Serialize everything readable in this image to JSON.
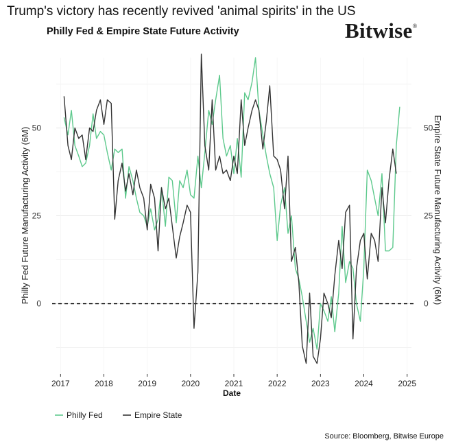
{
  "headline": "Trump's victory has recently revived 'animal spirits' in the US",
  "brand": {
    "name": "Bitwise",
    "mark": "®"
  },
  "source": "Source: Bloomberg, Bitwise Europe",
  "chart_data": {
    "type": "line",
    "title": "Philly Fed & Empire State Future Activity",
    "xlabel": "Date",
    "ylabel": "Philly Fed Future Manufacturing Activity (6M)",
    "ylabel_right": "Empire State Future Manufacturing Activity (6M)",
    "xlim": [
      2016.9,
      2025.1
    ],
    "ylim": [
      -20,
      70
    ],
    "x_ticks": [
      2017,
      2018,
      2019,
      2020,
      2021,
      2022,
      2023,
      2024,
      2025
    ],
    "y_ticks": [
      0,
      25,
      50
    ],
    "grid": "horizontal",
    "reference_line": {
      "y": 0,
      "style": "dashed"
    },
    "legend_position": "bottom-left",
    "colors": {
      "Philly Fed": "#5dc98c",
      "Empire State": "#333333"
    },
    "series": [
      {
        "name": "Philly Fed",
        "x": [
          2017.08,
          2017.17,
          2017.25,
          2017.33,
          2017.42,
          2017.5,
          2017.58,
          2017.67,
          2017.75,
          2017.83,
          2017.92,
          2018.0,
          2018.08,
          2018.17,
          2018.25,
          2018.33,
          2018.42,
          2018.5,
          2018.58,
          2018.67,
          2018.75,
          2018.83,
          2018.92,
          2019.0,
          2019.08,
          2019.17,
          2019.25,
          2019.33,
          2019.42,
          2019.5,
          2019.58,
          2019.67,
          2019.75,
          2019.83,
          2019.92,
          2020.0,
          2020.08,
          2020.17,
          2020.25,
          2020.33,
          2020.42,
          2020.5,
          2020.58,
          2020.67,
          2020.75,
          2020.83,
          2020.92,
          2021.0,
          2021.08,
          2021.17,
          2021.25,
          2021.33,
          2021.42,
          2021.5,
          2021.58,
          2021.67,
          2021.75,
          2021.83,
          2021.92,
          2022.0,
          2022.08,
          2022.17,
          2022.25,
          2022.33,
          2022.42,
          2022.5,
          2022.58,
          2022.67,
          2022.75,
          2022.83,
          2022.92,
          2023.0,
          2023.08,
          2023.17,
          2023.25,
          2023.33,
          2023.42,
          2023.5,
          2023.58,
          2023.67,
          2023.75,
          2023.83,
          2023.92,
          2024.0,
          2024.08,
          2024.17,
          2024.25,
          2024.33,
          2024.42,
          2024.5,
          2024.58,
          2024.67,
          2024.75,
          2024.83,
          2024.92
        ],
        "y": [
          53,
          48,
          55,
          45,
          42,
          39,
          40,
          45,
          54,
          47,
          49,
          48,
          43,
          38,
          44,
          43,
          44,
          30,
          39,
          35,
          30,
          26,
          25,
          22,
          27,
          21,
          24,
          33,
          22,
          36,
          35,
          23,
          35,
          33,
          38,
          31,
          30,
          42,
          33,
          43,
          55,
          51,
          58,
          65,
          47,
          42,
          45,
          37,
          47,
          36,
          60,
          58,
          63,
          70,
          55,
          48,
          42,
          37,
          33,
          18,
          28,
          33,
          20,
          25,
          10,
          7,
          2,
          -5,
          -11,
          -7,
          -13,
          0,
          -2,
          -5,
          2,
          -8,
          3,
          22,
          6,
          12,
          10,
          0,
          -5,
          10,
          38,
          35,
          30,
          25,
          37,
          15,
          15,
          16,
          45,
          56,
          null
        ]
      },
      {
        "name": "Empire State",
        "x": [
          2017.08,
          2017.17,
          2017.25,
          2017.33,
          2017.42,
          2017.5,
          2017.58,
          2017.67,
          2017.75,
          2017.83,
          2017.92,
          2018.0,
          2018.08,
          2018.17,
          2018.25,
          2018.33,
          2018.42,
          2018.5,
          2018.58,
          2018.67,
          2018.75,
          2018.83,
          2018.92,
          2019.0,
          2019.08,
          2019.17,
          2019.25,
          2019.33,
          2019.42,
          2019.5,
          2019.58,
          2019.67,
          2019.75,
          2019.83,
          2019.92,
          2020.0,
          2020.08,
          2020.17,
          2020.25,
          2020.33,
          2020.42,
          2020.5,
          2020.58,
          2020.67,
          2020.75,
          2020.83,
          2020.92,
          2021.0,
          2021.08,
          2021.17,
          2021.25,
          2021.33,
          2021.42,
          2021.5,
          2021.58,
          2021.67,
          2021.75,
          2021.83,
          2021.92,
          2022.0,
          2022.08,
          2022.17,
          2022.25,
          2022.33,
          2022.42,
          2022.5,
          2022.58,
          2022.67,
          2022.75,
          2022.83,
          2022.92,
          2023.0,
          2023.08,
          2023.17,
          2023.25,
          2023.33,
          2023.42,
          2023.5,
          2023.58,
          2023.67,
          2023.75,
          2023.83,
          2023.92,
          2024.0,
          2024.08,
          2024.17,
          2024.25,
          2024.33,
          2024.42,
          2024.5,
          2024.58,
          2024.67,
          2024.75,
          2024.83,
          2024.92
        ],
        "y": [
          59,
          45,
          41,
          50,
          47,
          48,
          41,
          50,
          49,
          55,
          58,
          51,
          58,
          57,
          24,
          35,
          40,
          32,
          37,
          31,
          38,
          33,
          30,
          21,
          34,
          30,
          15,
          33,
          27,
          30,
          22,
          13,
          19,
          23,
          28,
          26,
          -7,
          9,
          71,
          45,
          38,
          58,
          38,
          42,
          37,
          38,
          35,
          42,
          37,
          58,
          45,
          50,
          55,
          58,
          55,
          44,
          52,
          62,
          42,
          41,
          38,
          27,
          42,
          12,
          16,
          6,
          -12,
          -17,
          3,
          -15,
          -17,
          -10,
          3,
          0,
          -4,
          8,
          18,
          10,
          26,
          28,
          -10,
          10,
          18,
          20,
          7,
          20,
          18,
          12,
          33,
          23,
          35,
          44,
          37,
          null,
          null
        ]
      }
    ]
  }
}
